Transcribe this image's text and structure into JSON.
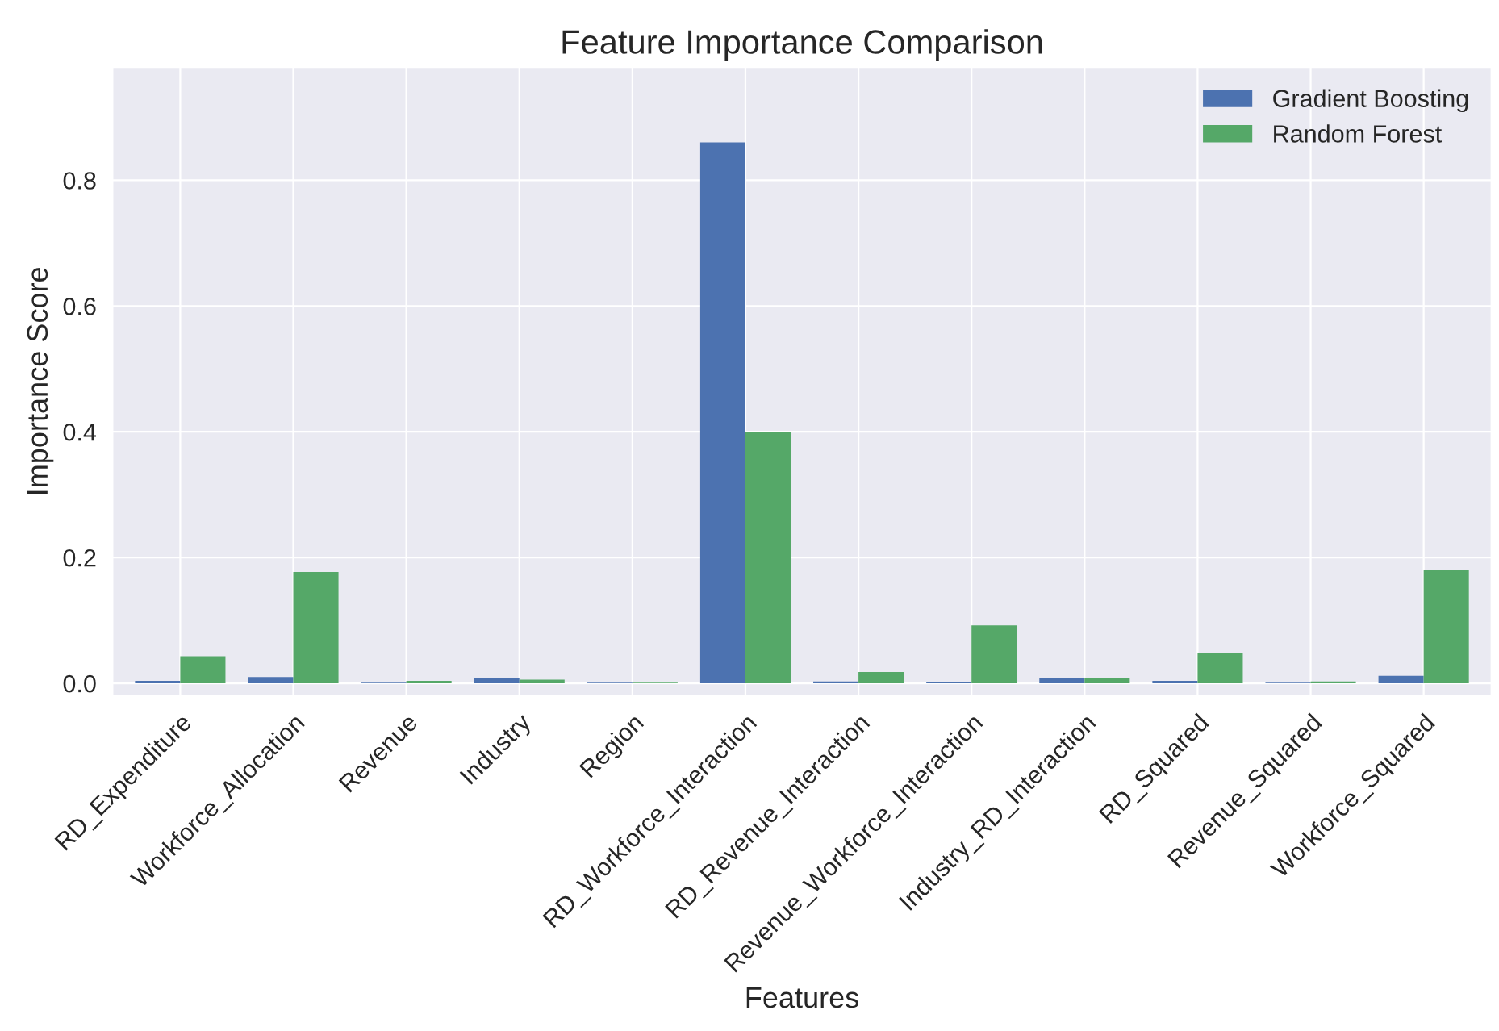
{
  "chart_data": {
    "type": "bar",
    "title": "Feature Importance Comparison",
    "xlabel": "Features",
    "ylabel": "Importance Score",
    "categories": [
      "RD_Expenditure",
      "Workforce_Allocation",
      "Revenue",
      "Industry",
      "Region",
      "RD_Workforce_Interaction",
      "RD_Revenue_Interaction",
      "Revenue_Workforce_Interaction",
      "Industry_RD_Interaction",
      "RD_Squared",
      "Revenue_Squared",
      "Workforce_Squared"
    ],
    "series": [
      {
        "name": "Gradient Boosting",
        "color": "#4c72b0",
        "values": [
          0.004,
          0.01,
          0.001,
          0.008,
          0.001,
          0.86,
          0.003,
          0.002,
          0.008,
          0.004,
          0.001,
          0.012
        ]
      },
      {
        "name": "Random Forest",
        "color": "#55a868",
        "values": [
          0.043,
          0.177,
          0.004,
          0.006,
          0.001,
          0.4,
          0.018,
          0.092,
          0.009,
          0.048,
          0.003,
          0.181
        ]
      }
    ],
    "ylim": [
      -0.02,
      0.98
    ],
    "yticks": [
      {
        "value": 0,
        "label": "0.0"
      },
      0.2,
      0.4,
      0.6,
      0.8
    ],
    "grid": true,
    "legend": "top right"
  }
}
